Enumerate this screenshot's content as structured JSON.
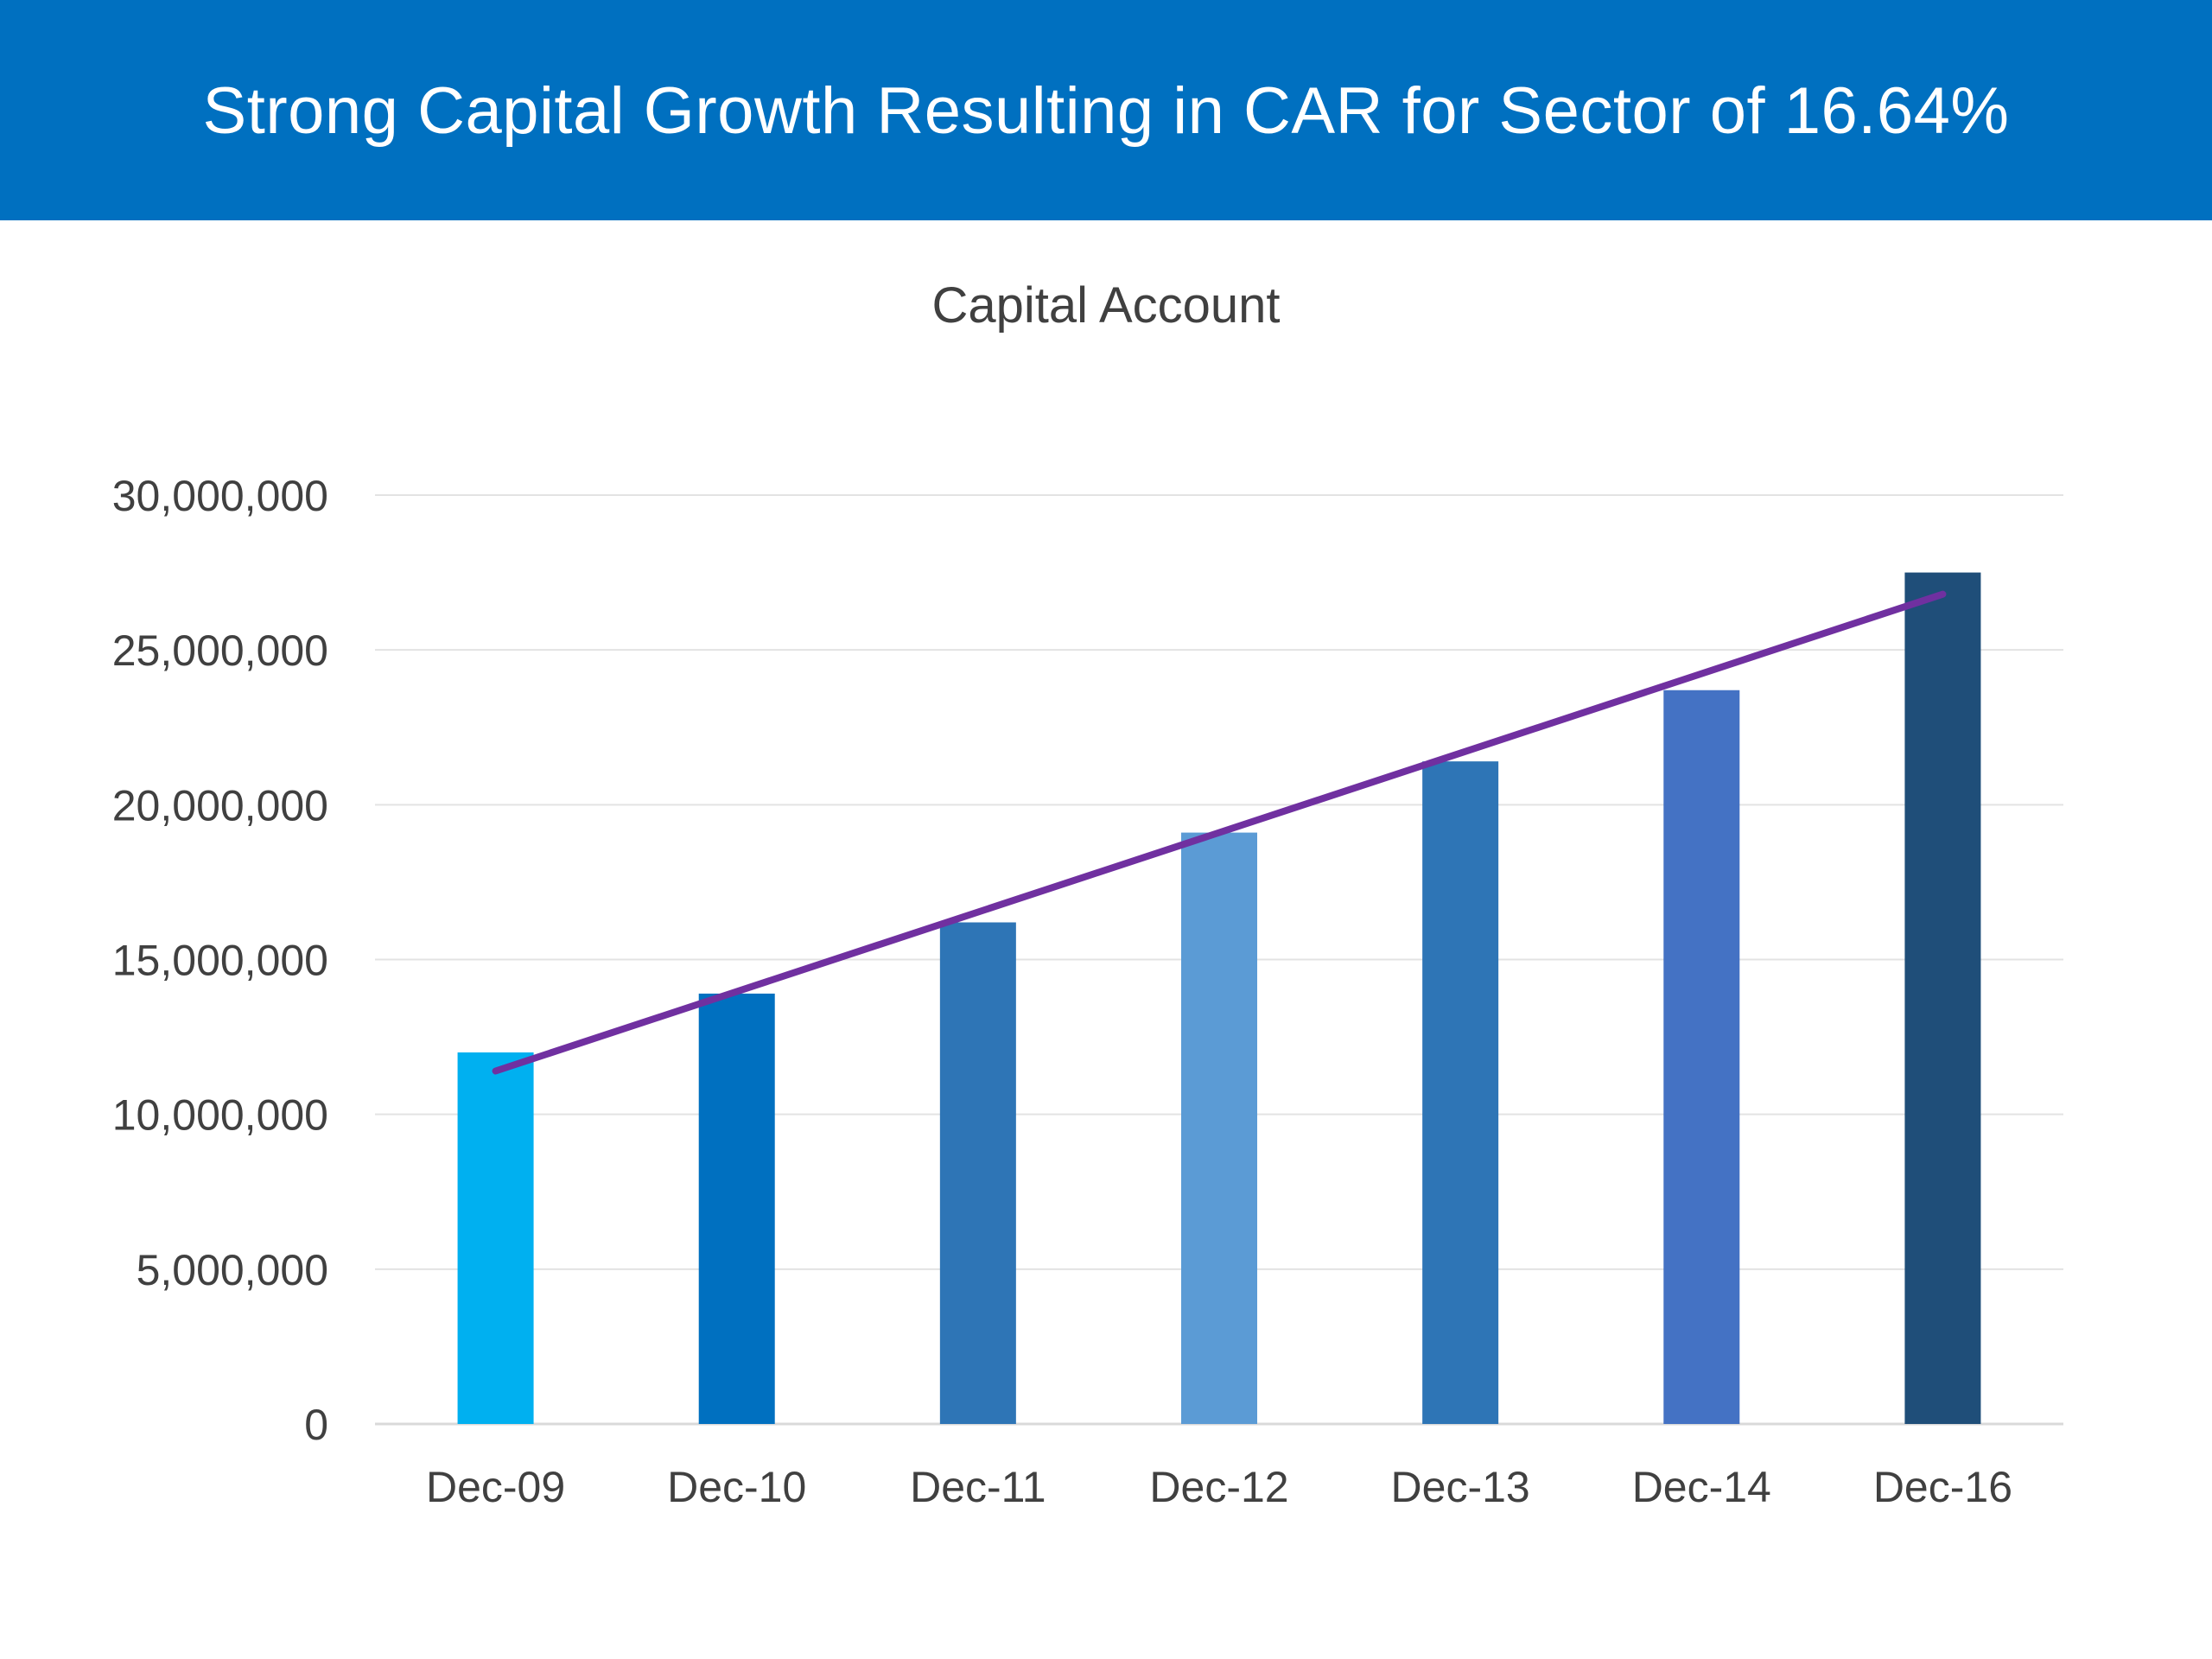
{
  "header": {
    "title": "Strong Capital Growth Resulting in CAR for Sector of 16.64%",
    "background_color": "#0070C0"
  },
  "chart_data": {
    "type": "bar",
    "title": "Capital Account",
    "xlabel": "",
    "ylabel": "",
    "categories": [
      "Dec-09",
      "Dec-10",
      "Dec-11",
      "Dec-12",
      "Dec-13",
      "Dec-14",
      "Dec-16"
    ],
    "values": [
      12000000,
      13900000,
      16200000,
      19100000,
      21400000,
      23700000,
      27500000
    ],
    "bar_colors": [
      "#00B0F0",
      "#0070C0",
      "#2E75B6",
      "#5B9BD5",
      "#2E75B6",
      "#4472C4",
      "#1F4E79"
    ],
    "ylim": [
      0,
      30000000
    ],
    "yticks": [
      0,
      5000000,
      10000000,
      15000000,
      20000000,
      25000000,
      30000000
    ],
    "ytick_labels": [
      "0",
      "5,000,000",
      "10,000,000",
      "15,000,000",
      "20,000,000",
      "25,000,000",
      "30,000,000"
    ],
    "grid": true,
    "legend": "none",
    "trendline": {
      "type": "linear",
      "color": "#7030A0",
      "start_value": 11400000,
      "end_value": 26800000
    }
  }
}
